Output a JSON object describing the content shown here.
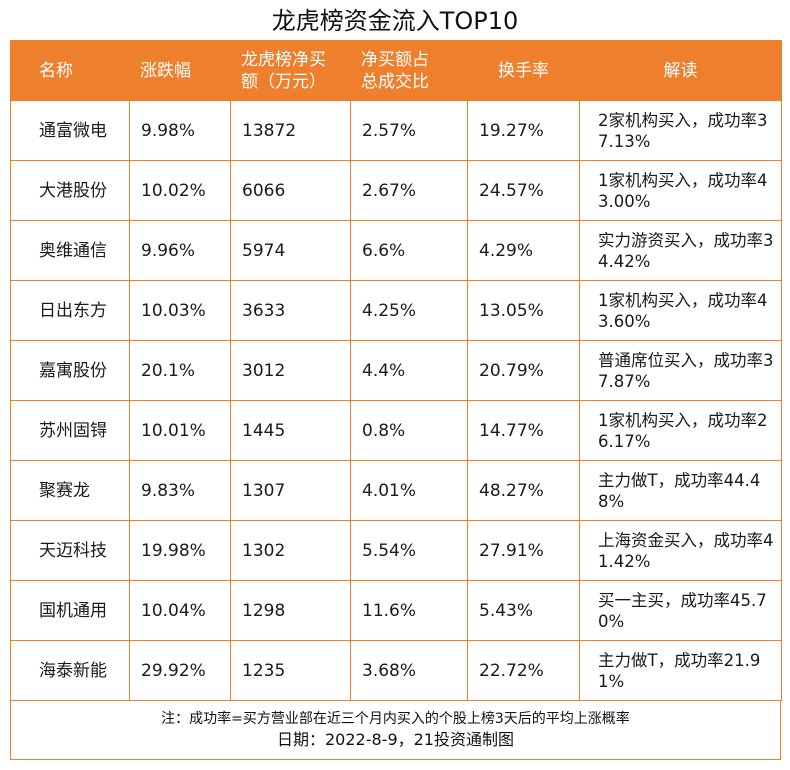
{
  "title": "龙虎榜资金流入TOP10",
  "headers": {
    "name": "名称",
    "change": "涨跌幅",
    "net_buy_line1": "龙虎榜净买",
    "net_buy_line2": "额（万元）",
    "ratio_line1": "净买额占",
    "ratio_line2": "总成交比",
    "turnover": "换手率",
    "note": "解读"
  },
  "rows": [
    {
      "name": "通富微电",
      "change": "9.98%",
      "net_buy": "13872",
      "ratio": "2.57%",
      "turnover": "19.27%",
      "note": "2家机构买入，成功率37.13%"
    },
    {
      "name": "大港股份",
      "change": "10.02%",
      "net_buy": "6066",
      "ratio": "2.67%",
      "turnover": "24.57%",
      "note": "1家机构买入，成功率43.00%"
    },
    {
      "name": "奥维通信",
      "change": "9.96%",
      "net_buy": "5974",
      "ratio": "6.6%",
      "turnover": "4.29%",
      "note": "实力游资买入，成功率34.42%"
    },
    {
      "name": "日出东方",
      "change": "10.03%",
      "net_buy": "3633",
      "ratio": "4.25%",
      "turnover": "13.05%",
      "note": "1家机构买入，成功率43.60%"
    },
    {
      "name": "嘉寓股份",
      "change": "20.1%",
      "net_buy": "3012",
      "ratio": "4.4%",
      "turnover": "20.79%",
      "note": "普通席位买入，成功率37.87%"
    },
    {
      "name": "苏州固锝",
      "change": "10.01%",
      "net_buy": "1445",
      "ratio": "0.8%",
      "turnover": "14.77%",
      "note": "1家机构买入，成功率26.17%"
    },
    {
      "name": "聚赛龙",
      "change": "9.83%",
      "net_buy": "1307",
      "ratio": "4.01%",
      "turnover": "48.27%",
      "note": "主力做T，成功率44.48%"
    },
    {
      "name": "天迈科技",
      "change": "19.98%",
      "net_buy": "1302",
      "ratio": "5.54%",
      "turnover": "27.91%",
      "note": "上海资金买入，成功率41.42%"
    },
    {
      "name": "国机通用",
      "change": "10.04%",
      "net_buy": "1298",
      "ratio": "11.6%",
      "turnover": "5.43%",
      "note": "买一主买，成功率45.70%"
    },
    {
      "name": "海泰新能",
      "change": "29.92%",
      "net_buy": "1235",
      "ratio": "3.68%",
      "turnover": "22.72%",
      "note": "主力做T，成功率21.91%"
    }
  ],
  "footer": {
    "note": "注：成功率=买方营业部在近三个月内买入的个股上榜3天后的平均上涨概率",
    "date": "日期：2022-8-9，21投资通制图"
  },
  "colors": {
    "accent": "#ee7f2d",
    "header_text": "#ffffff"
  }
}
